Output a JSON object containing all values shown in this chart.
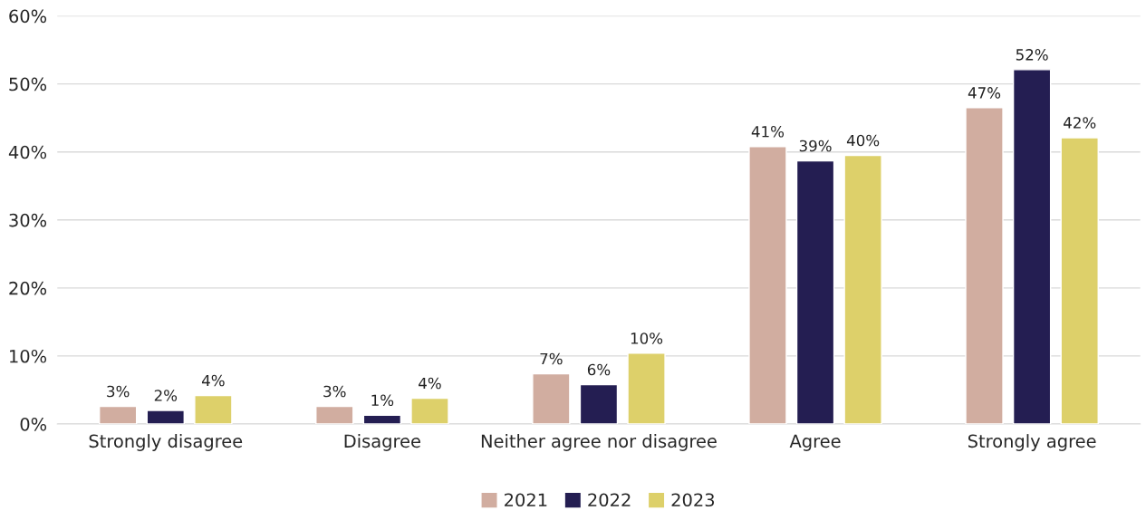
{
  "chart_data": {
    "type": "bar",
    "categories": [
      "Strongly disagree",
      "Disagree",
      "Neither agree nor disagree",
      "Agree",
      "Strongly agree"
    ],
    "series": [
      {
        "name": "2021",
        "color": "#d1ada0",
        "values": [
          2.6,
          2.6,
          7.4,
          40.8,
          46.5
        ],
        "value_labels": [
          "3%",
          "3%",
          "7%",
          "41%",
          "47%"
        ]
      },
      {
        "name": "2022",
        "color": "#241e52",
        "values": [
          2.0,
          1.3,
          5.8,
          38.7,
          52.1
        ],
        "value_labels": [
          "2%",
          "1%",
          "6%",
          "39%",
          "52%"
        ]
      },
      {
        "name": "2023",
        "color": "#ddd06a",
        "values": [
          4.2,
          3.8,
          10.4,
          39.5,
          42.1
        ],
        "value_labels": [
          "4%",
          "4%",
          "10%",
          "40%",
          "42%"
        ]
      }
    ],
    "ylim": [
      0,
      60
    ],
    "yticks": [
      {
        "value": 0,
        "label": "0%"
      },
      {
        "value": 10,
        "label": "10%"
      },
      {
        "value": 20,
        "label": "20%"
      },
      {
        "value": 30,
        "label": "30%"
      },
      {
        "value": 40,
        "label": "40%"
      },
      {
        "value": 50,
        "label": "50%"
      },
      {
        "value": 60,
        "label": "60%"
      }
    ],
    "grid": "y",
    "legend": "bottom"
  }
}
